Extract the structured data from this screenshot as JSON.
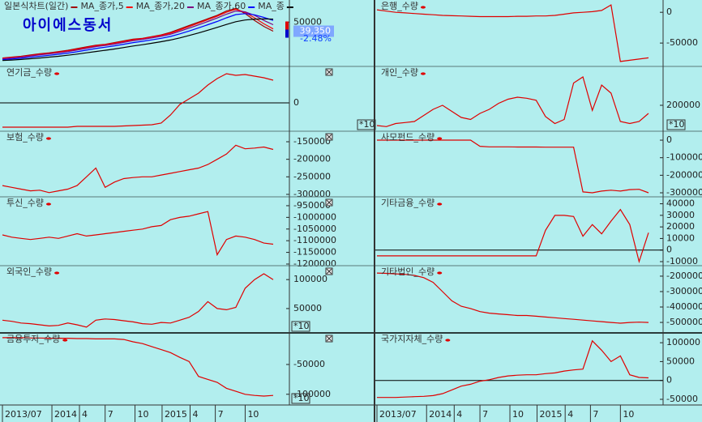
{
  "chart_data": [
    {
      "type": "line",
      "annotation": "아이에스동서",
      "last_value": {
        "value": 39350,
        "label": "39,350"
      },
      "change_label": "-2.48%",
      "xlim": [
        0,
        29
      ],
      "ylim": [
        0,
        74000
      ],
      "yticks": [
        50000
      ],
      "series": [
        {
          "name": "일본식차트(일간)",
          "color": "#a00000",
          "values": [
            8000,
            9000,
            10000,
            11500,
            13000,
            14000,
            15500,
            17000,
            19000,
            21000,
            23000,
            24000,
            26000,
            28000,
            30000,
            31000,
            33000,
            35000,
            38000,
            42000,
            46000,
            50000,
            54000,
            58000,
            63000,
            66000,
            60000,
            52000,
            45000,
            39350
          ]
        },
        {
          "name": "MA_종가,5",
          "color": "#ff0000",
          "values": [
            7800,
            8600,
            9500,
            10800,
            12300,
            13500,
            14800,
            16300,
            18200,
            20200,
            22300,
            23600,
            25300,
            27300,
            29300,
            30600,
            32500,
            34500,
            37000,
            40800,
            44800,
            48800,
            52800,
            56800,
            61600,
            65000,
            61500,
            55000,
            48000,
            42000
          ]
        },
        {
          "name": "MA_종가,20",
          "color": "#800080",
          "values": [
            7000,
            8000,
            9000,
            10300,
            11700,
            12800,
            14000,
            15500,
            17300,
            19300,
            21300,
            22700,
            24300,
            26300,
            28300,
            29700,
            31500,
            33400,
            35800,
            39300,
            43000,
            46800,
            50800,
            54800,
            59300,
            63000,
            62000,
            58000,
            52000,
            47000
          ]
        },
        {
          "name": "MA_종가,60",
          "color": "#0000ff",
          "values": [
            6000,
            6800,
            7700,
            8800,
            10000,
            11100,
            12300,
            13700,
            15300,
            17200,
            19100,
            20600,
            22200,
            24100,
            26000,
            27500,
            29200,
            31000,
            33200,
            36200,
            39600,
            43300,
            47000,
            50800,
            55000,
            58800,
            60000,
            58500,
            55500,
            52000
          ]
        },
        {
          "name": "MA_종",
          "color": "#000000",
          "values": [
            5000,
            5600,
            6300,
            7100,
            8000,
            9000,
            10000,
            11200,
            12500,
            14000,
            15600,
            17000,
            18500,
            20200,
            22000,
            23500,
            25200,
            27000,
            29000,
            31500,
            34300,
            37300,
            40500,
            43800,
            47200,
            50500,
            52500,
            53500,
            53800,
            53500
          ]
        }
      ]
    },
    {
      "type": "line",
      "title": "연기금_수량",
      "color": "#e00000",
      "zero_line": true,
      "xlim": [
        0,
        29
      ],
      "ylim": [
        -35000,
        45000
      ],
      "yticks": [
        0
      ],
      "values": [
        -30000,
        -30000,
        -30000,
        -30000,
        -30000,
        -30000,
        -30000,
        -30000,
        -29000,
        -29000,
        -29000,
        -29000,
        -29000,
        -28500,
        -28000,
        -27500,
        -27000,
        -25000,
        -15000,
        -2000,
        5000,
        12000,
        22000,
        30000,
        36000,
        34000,
        35000,
        33000,
        31000,
        28000
      ]
    },
    {
      "type": "line",
      "title": "보험_수량",
      "color": "#e00000",
      "xlim": [
        0,
        29
      ],
      "ylim": [
        -307000,
        -120000
      ],
      "yticks": [
        -150000,
        -200000,
        -250000,
        -300000
      ],
      "values": [
        -275000,
        -280000,
        -285000,
        -290000,
        -288000,
        -295000,
        -290000,
        -285000,
        -275000,
        -250000,
        -225000,
        -280000,
        -265000,
        -255000,
        -252000,
        -250000,
        -250000,
        -245000,
        -240000,
        -235000,
        -230000,
        -225000,
        -215000,
        -200000,
        -185000,
        -160000,
        -170000,
        -168000,
        -165000,
        -172000
      ]
    },
    {
      "type": "line",
      "title": "투신_수량",
      "color": "#e00000",
      "xlim": [
        0,
        29
      ],
      "ylim": [
        -1207000,
        -912000
      ],
      "yticks": [
        -950000,
        -1000000,
        -1050000,
        -1100000,
        -1150000,
        -1200000
      ],
      "values": [
        -1075000,
        -1085000,
        -1090000,
        -1095000,
        -1090000,
        -1085000,
        -1090000,
        -1080000,
        -1070000,
        -1080000,
        -1075000,
        -1070000,
        -1065000,
        -1060000,
        -1055000,
        -1050000,
        -1040000,
        -1035000,
        -1010000,
        -1000000,
        -995000,
        -985000,
        -975000,
        -1160000,
        -1095000,
        -1080000,
        -1085000,
        -1095000,
        -1110000,
        -1115000
      ]
    },
    {
      "type": "line",
      "title": "외국인_수량",
      "color": "#e00000",
      "scale_label": "*10",
      "xlim": [
        0,
        29
      ],
      "ylim": [
        8000,
        124000
      ],
      "yticks": [
        100000,
        50000
      ],
      "values": [
        30000,
        28000,
        25000,
        24000,
        22000,
        20000,
        21000,
        25000,
        22000,
        18000,
        30000,
        32000,
        31000,
        29000,
        27000,
        24000,
        23000,
        26000,
        25000,
        30000,
        35000,
        45000,
        62000,
        50000,
        48000,
        52000,
        85000,
        100000,
        110000,
        100000
      ]
    },
    {
      "type": "line",
      "title": "금융투자_수량",
      "color": "#e00000",
      "scale_label": "*10",
      "xlim": [
        0,
        29
      ],
      "ylim": [
        -118000,
        3000
      ],
      "yticks": [
        -50000,
        -100000
      ],
      "xticks": [
        {
          "value": 0,
          "label": "2013/07"
        },
        {
          "value": 5.3,
          "label": "2014"
        },
        {
          "value": 8.25,
          "label": "4"
        },
        {
          "value": 11,
          "label": "7"
        },
        {
          "value": 14.2,
          "label": "10"
        },
        {
          "value": 17.1,
          "label": "2015"
        },
        {
          "value": 20.1,
          "label": "4"
        },
        {
          "value": 22.8,
          "label": "7"
        },
        {
          "value": 26,
          "label": "10"
        }
      ],
      "values": [
        -5000,
        -5000,
        -5000,
        -5500,
        -5500,
        -6000,
        -6000,
        -6000,
        -6500,
        -6500,
        -7000,
        -7000,
        -7000,
        -8000,
        -12000,
        -15000,
        -20000,
        -25000,
        -30000,
        -38000,
        -45000,
        -70000,
        -75000,
        -80000,
        -90000,
        -95000,
        -100000,
        -102000,
        -103000,
        -102000
      ]
    },
    {
      "type": "line",
      "title": "은행_수량",
      "color": "#e00000",
      "xlim": [
        0,
        29
      ],
      "ylim": [
        -88000,
        20000
      ],
      "yticks": [
        0,
        -50000
      ],
      "values": [
        4000,
        2000,
        0,
        -1000,
        -2000,
        -3000,
        -4000,
        -5000,
        -5500,
        -6000,
        -6500,
        -7000,
        -7000,
        -7000,
        -7000,
        -6500,
        -6500,
        -6000,
        -6000,
        -5000,
        -3000,
        -1000,
        0,
        1000,
        3000,
        12000,
        -80000,
        -78000,
        -76000,
        -74000
      ]
    },
    {
      "type": "line",
      "title": "개인_수량",
      "color": "#e00000",
      "scale_label": "*10",
      "xlim": [
        0,
        29
      ],
      "ylim": [
        72000,
        392000
      ],
      "yticks": [
        200000
      ],
      "values": [
        100000,
        95000,
        110000,
        115000,
        120000,
        150000,
        180000,
        200000,
        170000,
        140000,
        130000,
        160000,
        180000,
        210000,
        230000,
        240000,
        235000,
        225000,
        145000,
        110000,
        130000,
        310000,
        340000,
        175000,
        300000,
        260000,
        120000,
        110000,
        120000,
        160000
      ]
    },
    {
      "type": "line",
      "title": "사모펀드_수량",
      "color": "#e00000",
      "xlim": [
        0,
        29
      ],
      "ylim": [
        -323000,
        51000
      ],
      "yticks": [
        0,
        -100000,
        -200000,
        -300000
      ],
      "values": [
        0,
        0,
        0,
        0,
        0,
        0,
        0,
        0,
        0,
        0,
        0,
        -35000,
        -38000,
        -38000,
        -38000,
        -39000,
        -39000,
        -39000,
        -40000,
        -40000,
        -40000,
        -40000,
        -295000,
        -300000,
        -290000,
        -285000,
        -290000,
        -282000,
        -280000,
        -300000
      ]
    },
    {
      "type": "line",
      "title": "기타금융_수량",
      "color": "#e00000",
      "zero_line": true,
      "xlim": [
        0,
        29
      ],
      "ylim": [
        -13500,
        46000
      ],
      "yticks": [
        40000,
        30000,
        20000,
        10000,
        0,
        -10000
      ],
      "values": [
        -5000,
        -5000,
        -5000,
        -5000,
        -5000,
        -5000,
        -5000,
        -5000,
        -5000,
        -5000,
        -5000,
        -5000,
        -5000,
        -5000,
        -5000,
        -5000,
        -5000,
        -5000,
        17000,
        30000,
        30000,
        29000,
        12000,
        22000,
        14000,
        25000,
        35000,
        22000,
        -10000,
        15000
      ]
    },
    {
      "type": "line",
      "title": "기타법인_수량",
      "color": "#e00000",
      "xlim": [
        0,
        29
      ],
      "ylim": [
        -568000,
        -132000
      ],
      "yticks": [
        -200000,
        -300000,
        -400000,
        -500000
      ],
      "values": [
        -180000,
        -182000,
        -185000,
        -188000,
        -195000,
        -210000,
        -240000,
        -300000,
        -360000,
        -395000,
        -410000,
        -430000,
        -440000,
        -445000,
        -450000,
        -455000,
        -455000,
        -460000,
        -465000,
        -470000,
        -475000,
        -480000,
        -485000,
        -490000,
        -495000,
        -500000,
        -505000,
        -500000,
        -498000,
        -500000
      ]
    },
    {
      "type": "line",
      "title": "국가지자체_수량",
      "color": "#e00000",
      "zero_line": true,
      "xlim": [
        0,
        29
      ],
      "ylim": [
        -65000,
        126000
      ],
      "yticks": [
        100000,
        50000,
        0,
        -50000
      ],
      "xticks": [
        {
          "value": 0,
          "label": "2013/07"
        },
        {
          "value": 5.3,
          "label": "2014"
        },
        {
          "value": 8.25,
          "label": "4"
        },
        {
          "value": 11,
          "label": "7"
        },
        {
          "value": 14.2,
          "label": "10"
        },
        {
          "value": 17.1,
          "label": "2015"
        },
        {
          "value": 20.1,
          "label": "4"
        },
        {
          "value": 22.8,
          "label": "7"
        },
        {
          "value": 26,
          "label": "10"
        }
      ],
      "values": [
        -45000,
        -45000,
        -45000,
        -44000,
        -43000,
        -42000,
        -40000,
        -35000,
        -25000,
        -15000,
        -10000,
        -2000,
        2000,
        8000,
        12000,
        14000,
        15000,
        15000,
        18000,
        20000,
        25000,
        28000,
        30000,
        105000,
        80000,
        50000,
        65000,
        15000,
        8000,
        7000
      ]
    }
  ]
}
